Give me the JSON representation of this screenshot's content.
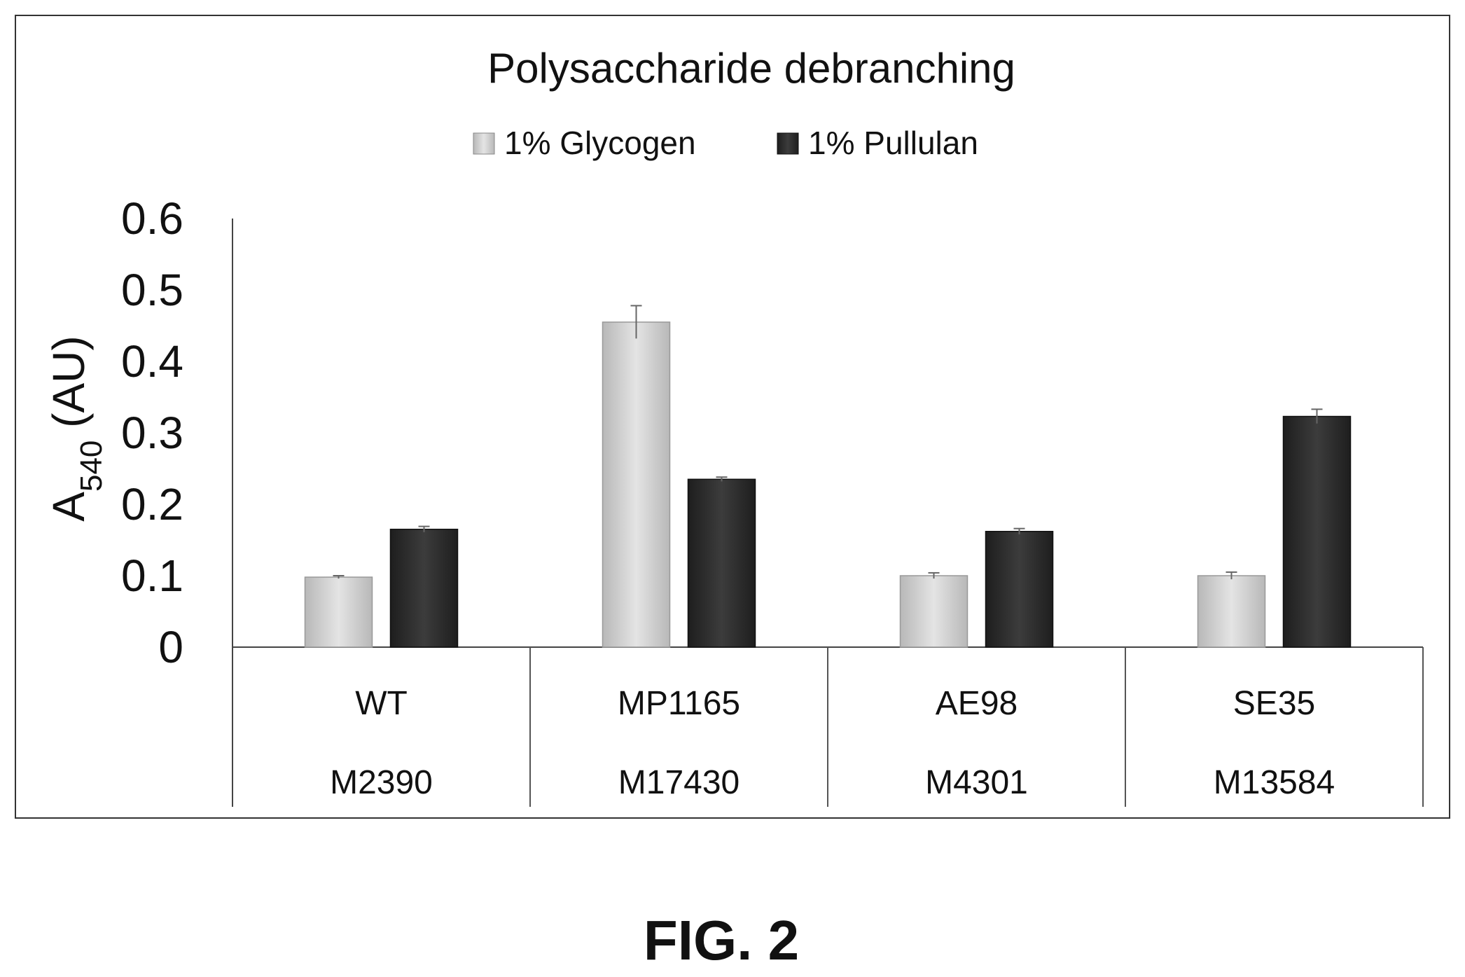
{
  "chart_data": {
    "type": "bar",
    "title": "Polysaccharide debranching",
    "ylabel": {
      "main": "A",
      "subscript": "540",
      "unit": " (AU)"
    },
    "xlabel": "",
    "ylim": [
      0,
      0.6
    ],
    "yticks": [
      "0",
      "0.1",
      "0.2",
      "0.3",
      "0.4",
      "0.5",
      "0.6"
    ],
    "yticks_values": [
      0,
      0.1,
      0.2,
      0.3,
      0.4,
      0.5,
      0.6
    ],
    "categories": [
      {
        "line1": "WT",
        "line2": "M2390"
      },
      {
        "line1": "MP1165",
        "line2": "M17430"
      },
      {
        "line1": "AE98",
        "line2": "M4301"
      },
      {
        "line1": "SE35",
        "line2": "M13584"
      }
    ],
    "series": [
      {
        "name": "1% Glycogen",
        "color": "#d6d6d6",
        "values": [
          0.098,
          0.455,
          0.1,
          0.1
        ],
        "errors": [
          0.002,
          0.023,
          0.004,
          0.005
        ]
      },
      {
        "name": "1% Pullulan",
        "color": "#2e2e2e",
        "values": [
          0.165,
          0.235,
          0.162,
          0.323
        ],
        "errors": [
          0.004,
          0.003,
          0.004,
          0.01
        ]
      }
    ],
    "legend_position": "top-center",
    "grid": false
  },
  "figure_label": "FIG. 2"
}
